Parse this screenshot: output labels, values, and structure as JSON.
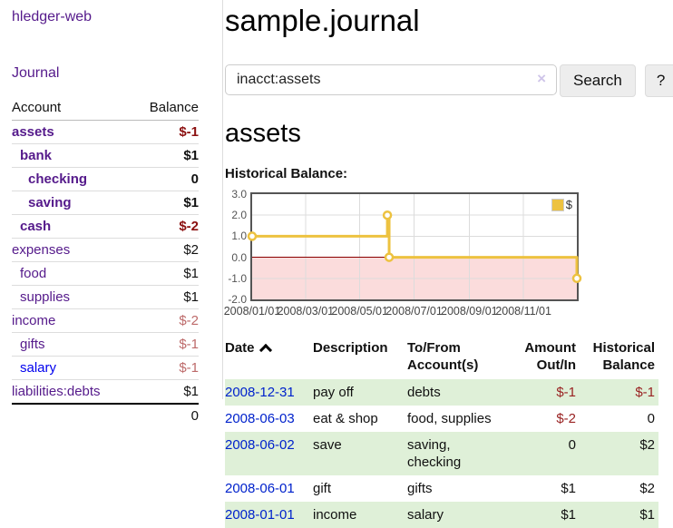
{
  "sidebar": {
    "app_title": "hledger-web",
    "nav": {
      "journal_label": "Journal"
    },
    "accounts_table": {
      "headers": {
        "account": "Account",
        "balance": "Balance"
      },
      "rows": [
        {
          "account": "assets",
          "balance": "$-1",
          "level": 1,
          "bold": true,
          "blue": false,
          "balance_style": "neg"
        },
        {
          "account": "bank",
          "balance": "$1",
          "level": 2,
          "bold": true,
          "blue": false,
          "balance_style": ""
        },
        {
          "account": "checking",
          "balance": "0",
          "level": 3,
          "bold": true,
          "blue": false,
          "balance_style": ""
        },
        {
          "account": "saving",
          "balance": "$1",
          "level": 3,
          "bold": true,
          "blue": false,
          "balance_style": ""
        },
        {
          "account": "cash",
          "balance": "$-2",
          "level": 2,
          "bold": true,
          "blue": false,
          "balance_style": "neg"
        },
        {
          "account": "expenses",
          "balance": "$2",
          "level": 1,
          "bold": false,
          "blue": false,
          "balance_style": ""
        },
        {
          "account": "food",
          "balance": "$1",
          "level": 2,
          "bold": false,
          "blue": false,
          "balance_style": ""
        },
        {
          "account": "supplies",
          "balance": "$1",
          "level": 2,
          "bold": false,
          "blue": false,
          "balance_style": ""
        },
        {
          "account": "income",
          "balance": "$-2",
          "level": 1,
          "bold": false,
          "blue": false,
          "balance_style": "neg-soft"
        },
        {
          "account": "gifts",
          "balance": "$-1",
          "level": 2,
          "bold": false,
          "blue": false,
          "balance_style": "neg-soft"
        },
        {
          "account": "salary",
          "balance": "$-1",
          "level": 2,
          "bold": false,
          "blue": true,
          "balance_style": "neg-soft"
        },
        {
          "account": "liabilities:debts",
          "balance": "$1",
          "level": 1,
          "bold": false,
          "blue": false,
          "balance_style": ""
        }
      ],
      "total": "0"
    }
  },
  "main": {
    "title": "sample.journal",
    "search": {
      "value": "inacct:assets",
      "clear_icon": "×",
      "button_label": "Search",
      "help_label": "?"
    },
    "section_title": "assets",
    "chart_label": "Historical Balance:"
  },
  "chart_data": {
    "type": "line",
    "title": "Historical Balance:",
    "step": true,
    "xlim": [
      0,
      365
    ],
    "ylim": [
      -2,
      3
    ],
    "legend": "$",
    "legend_position": "top-right",
    "grid": true,
    "line_color": "#EDC240",
    "marker_fill": "#ffffff",
    "zero_line_color": "#8b0000",
    "negative_region_color": "#fbdcdc",
    "grid_color": "#dcdcdc",
    "y_ticks": [
      {
        "label": "3.0",
        "v": 3
      },
      {
        "label": "2.0",
        "v": 2
      },
      {
        "label": "1.0",
        "v": 1
      },
      {
        "label": "0.0",
        "v": 0
      },
      {
        "label": "-1.0",
        "v": -1
      },
      {
        "label": "-2.0",
        "v": -2
      }
    ],
    "x_ticks": [
      {
        "label": "2008/01/01",
        "day": 0
      },
      {
        "label": "2008/03/01",
        "day": 60
      },
      {
        "label": "2008/05/01",
        "day": 121
      },
      {
        "label": "2008/07/01",
        "day": 182
      },
      {
        "label": "2008/09/01",
        "day": 244
      },
      {
        "label": "2008/11/01",
        "day": 305
      }
    ],
    "series": [
      {
        "name": "$",
        "points": [
          {
            "date": "2008-01-01",
            "day": 0,
            "y": 1
          },
          {
            "date": "2008-06-01",
            "day": 152,
            "y": 2
          },
          {
            "date": "2008-06-03",
            "day": 154,
            "y": 0
          },
          {
            "date": "2008-12-31",
            "day": 365,
            "y": -1
          }
        ]
      }
    ]
  },
  "register": {
    "headers": {
      "date": "Date",
      "description": "Description",
      "accounts": "To/From Account(s)",
      "amount": "Amount Out/In",
      "balance": "Historical Balance"
    },
    "rows": [
      {
        "date": "2008-12-31",
        "description": "pay off",
        "accounts": "debts",
        "amount": "$-1",
        "amount_neg": true,
        "balance": "$-1",
        "balance_neg": true
      },
      {
        "date": "2008-06-03",
        "description": "eat & shop",
        "accounts": "food, supplies",
        "amount": "$-2",
        "amount_neg": true,
        "balance": "0",
        "balance_neg": false
      },
      {
        "date": "2008-06-02",
        "description": "save",
        "accounts": "saving, checking",
        "amount": "0",
        "amount_neg": false,
        "balance": "$2",
        "balance_neg": false
      },
      {
        "date": "2008-06-01",
        "description": "gift",
        "accounts": "gifts",
        "amount": "$1",
        "amount_neg": false,
        "balance": "$2",
        "balance_neg": false
      },
      {
        "date": "2008-01-01",
        "description": "income",
        "accounts": "salary",
        "amount": "$1",
        "amount_neg": false,
        "balance": "$1",
        "balance_neg": false
      }
    ]
  },
  "colors": {
    "link_purple": "#551a8b",
    "link_blue": "#0000ee",
    "date_link_blue": "#0022cc",
    "negative_strong": "#8b1010",
    "negative_soft": "#bd6a6a",
    "negative_table": "#992222",
    "row_stripe_green": "#dff0d8",
    "chart_line_yellow": "#EDC240"
  }
}
